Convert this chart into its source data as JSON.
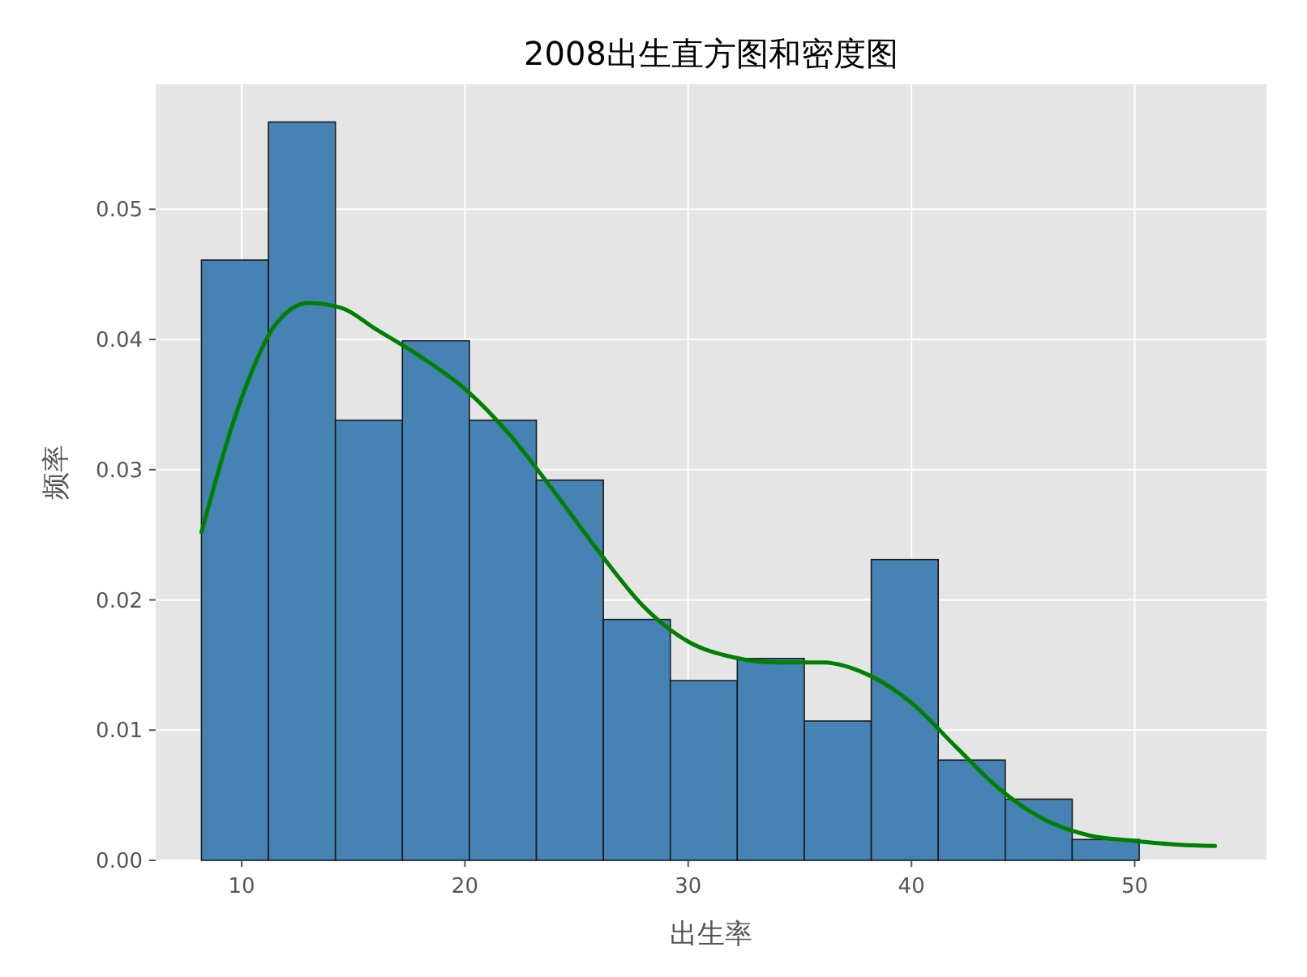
{
  "chart_data": {
    "type": "histogram",
    "title": "2008出生直方图和密度图",
    "xlabel": "出生率",
    "ylabel": "频率",
    "xlim": [
      6.15,
      55.9
    ],
    "ylim": [
      0,
      0.0596
    ],
    "xticks": [
      10,
      20,
      30,
      40,
      50
    ],
    "yticks": [
      {
        "value": 0,
        "label": "0.00"
      },
      {
        "value": 0.01,
        "label": "0.01"
      },
      {
        "value": 0.02,
        "label": "0.02"
      },
      {
        "value": 0.03,
        "label": "0.03"
      },
      {
        "value": 0.04,
        "label": "0.04"
      },
      {
        "value": 0.05,
        "label": "0.05"
      }
    ],
    "grid": true,
    "series": [
      {
        "type": "histogram",
        "color": "#4682b4",
        "bins": [
          8.2,
          11.2,
          14.2,
          17.2,
          20.2,
          23.2,
          26.2,
          29.2,
          32.2,
          35.2,
          38.2,
          41.2,
          44.2,
          47.2,
          50.2
        ],
        "values": [
          0.0461,
          0.0567,
          0.0338,
          0.0399,
          0.0338,
          0.0292,
          0.0185,
          0.0138,
          0.0155,
          0.0107,
          0.0231,
          0.0077,
          0.0047,
          0.0016
        ]
      },
      {
        "type": "line",
        "color": "#008000",
        "x": [
          8.2,
          10,
          11.5,
          13,
          14.5,
          16,
          18,
          20,
          22,
          24,
          26,
          28,
          30,
          32,
          34,
          36,
          38,
          40,
          42,
          44,
          46,
          48,
          50,
          52,
          53.6
        ],
        "values": [
          0.0252,
          0.0355,
          0.0411,
          0.0428,
          0.0424,
          0.0408,
          0.0387,
          0.0362,
          0.0327,
          0.0283,
          0.0237,
          0.0195,
          0.0168,
          0.0156,
          0.0152,
          0.0152,
          0.0143,
          0.0121,
          0.0087,
          0.0054,
          0.0031,
          0.0019,
          0.0015,
          0.0012,
          0.0011
        ]
      }
    ]
  }
}
